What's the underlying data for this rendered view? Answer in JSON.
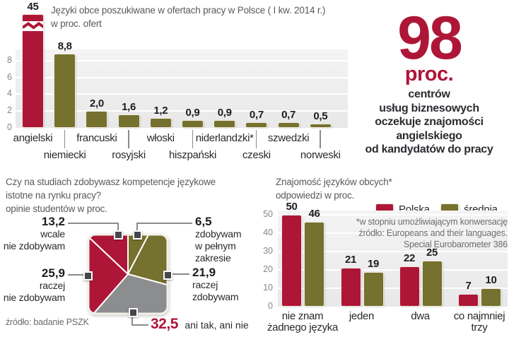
{
  "accent_colors": {
    "red": "#ae1638",
    "olive": "#75712e",
    "gray": "#8c8d8f"
  },
  "top_chart": {
    "title_lines": [
      "Języki obce poszukiwane w ofertach pracy w Polsce ( I kw. 2014 r.)",
      "w proc. ofert"
    ]
  },
  "highlight": {
    "number": "98",
    "unit": "proc.",
    "lines": [
      "centrów",
      "usług biznesowych",
      "oczekuje znajomości",
      "angielskiego",
      "od kandydatów do pracy"
    ]
  },
  "pie_section": {
    "title_lines": [
      "Czy na studiach zdobywasz kompetencje językowe",
      "istotne na rynku pracy?",
      "opinie studentów w proc."
    ],
    "source": "źródło: badanie PSZK",
    "callouts": [
      {
        "value": "13,2",
        "lines": [
          "wcale",
          "nie zdobywam"
        ]
      },
      {
        "value": "6,5",
        "lines": [
          "zdobywam",
          "w pełnym",
          "zakresie"
        ]
      },
      {
        "value": "25,9",
        "lines": [
          "raczej",
          "nie zdobywam"
        ]
      },
      {
        "value": "21,9",
        "lines": [
          "raczej",
          "zdobywam"
        ]
      },
      {
        "value": "32,5",
        "suffix": "ani tak, ani nie"
      }
    ]
  },
  "eu_chart": {
    "title_lines": [
      "Znajomość języków obcych*",
      "odpowiedzi w proc."
    ],
    "legend": [
      "Polska",
      "średnia UE"
    ],
    "note_lines": [
      "*w stopniu umożliwiającym konwersację",
      "źródło: Europeans and their languages.",
      "Special Eurobarometer 386"
    ],
    "value_labels": [
      [
        "50",
        "21",
        "22",
        "7"
      ],
      [
        "46",
        "19",
        "25",
        "10"
      ]
    ],
    "category_lines": [
      [
        "nie znam",
        "żadnego języka"
      ],
      [
        "jeden"
      ],
      [
        "dwa"
      ],
      [
        "co najmniej",
        "trzy"
      ]
    ]
  },
  "chart_data": [
    {
      "type": "bar",
      "title": "Języki obce poszukiwane w ofertach pracy w Polsce ( I kw. 2014 r.) w proc. ofert",
      "categories": [
        "angielski",
        "niemiecki",
        "francuski",
        "rosyjski",
        "włoski",
        "hiszpański",
        "niderlandzki*",
        "czeski",
        "szwedzki",
        "norweski"
      ],
      "values": [
        45,
        8.8,
        2.0,
        1.6,
        1.2,
        0.9,
        0.9,
        0.7,
        0.7,
        0.5
      ],
      "value_labels": [
        "45",
        "8,8",
        "2,0",
        "1,6",
        "1,2",
        "0,9",
        "0,9",
        "0,7",
        "0,7",
        "0,5"
      ],
      "colors": [
        "#ae1638",
        "#75712e",
        "#75712e",
        "#75712e",
        "#75712e",
        "#75712e",
        "#75712e",
        "#75712e",
        "#75712e",
        "#75712e"
      ],
      "ylim": [
        0,
        9
      ],
      "y_ticks": [
        0,
        2,
        4,
        6,
        8
      ],
      "axis_break": "first bar (angielski, 45) drawn with break symbol, exceeds scale",
      "grid": true,
      "legend_position": "none"
    },
    {
      "type": "pie",
      "style": "square-pie",
      "title": "Czy na studiach zdobywasz kompetencje językowe istotne na rynku pracy? opinie studentów w proc.",
      "labels": [
        "zdobywam w pełnym zakresie",
        "raczej zdobywam",
        "ani tak, ani nie",
        "raczej nie zdobywam",
        "wcale nie zdobywam"
      ],
      "values": [
        6.5,
        21.9,
        32.5,
        25.9,
        13.2
      ],
      "value_labels": [
        "6,5",
        "21,9",
        "32,5",
        "25,9",
        "13,2"
      ],
      "colors": [
        "#75712e",
        "#75712e",
        "#8c8d8f",
        "#ae1638",
        "#ae1638"
      ],
      "source": "źródło: badanie PSZK"
    },
    {
      "type": "bar",
      "title": "Znajomość języków obcych* odpowiedzi w proc.",
      "categories": [
        "nie znam żadnego języka",
        "jeden",
        "dwa",
        "co najmniej trzy"
      ],
      "series": [
        {
          "name": "Polska",
          "color": "#ae1638",
          "values": [
            50,
            21,
            22,
            7
          ]
        },
        {
          "name": "średnia UE",
          "color": "#75712e",
          "values": [
            46,
            19,
            25,
            10
          ]
        }
      ],
      "ylim": [
        0,
        50
      ],
      "y_ticks": [
        0,
        10,
        20,
        30,
        40,
        50
      ],
      "grid": true,
      "legend_position": "top-right",
      "note": "*w stopniu umożliwiającym konwersację źródło: Europeans and their languages. Special Eurobarometer 386"
    }
  ]
}
